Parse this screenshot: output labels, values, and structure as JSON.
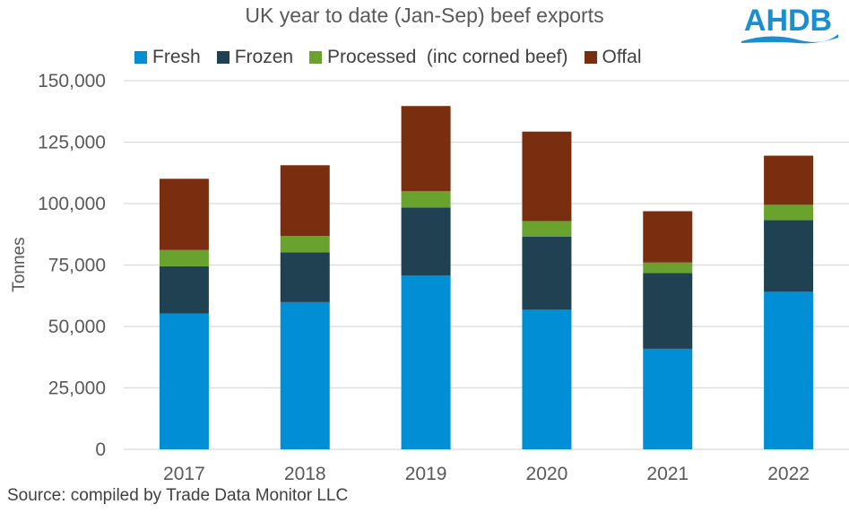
{
  "logo_text": "AHDB",
  "source": "Source: compiled by Trade Data Monitor LLC",
  "colors": {
    "Fresh": "#008fd5",
    "Frozen": "#204152",
    "Processed": "#6aa22e",
    "Offal": "#7a2e10",
    "grid": "#d9d9d9"
  },
  "chart_data": {
    "type": "bar",
    "stacked": true,
    "title": "UK year to date (Jan-Sep) beef exports",
    "xlabel": "",
    "ylabel": "Tonnes",
    "ylim": [
      0,
      150000
    ],
    "yticks": [
      0,
      25000,
      50000,
      75000,
      100000,
      125000,
      150000
    ],
    "ytick_labels": [
      "0",
      "25,000",
      "50,000",
      "75,000",
      "100,000",
      "125,000",
      "150,000"
    ],
    "grid": true,
    "legend_position": "top",
    "categories": [
      "2017",
      "2018",
      "2019",
      "2020",
      "2021",
      "2022"
    ],
    "series": [
      {
        "name": "Fresh",
        "values": [
          55300,
          59900,
          70800,
          56800,
          40900,
          64100
        ]
      },
      {
        "name": "Frozen",
        "values": [
          19200,
          20200,
          27600,
          29800,
          30800,
          29200
        ]
      },
      {
        "name": "Processed  (inc corned beef)",
        "values": [
          6600,
          6700,
          6700,
          6300,
          4300,
          6200
        ]
      },
      {
        "name": "Offal",
        "values": [
          29000,
          28800,
          34600,
          36400,
          20900,
          20000
        ]
      }
    ]
  }
}
